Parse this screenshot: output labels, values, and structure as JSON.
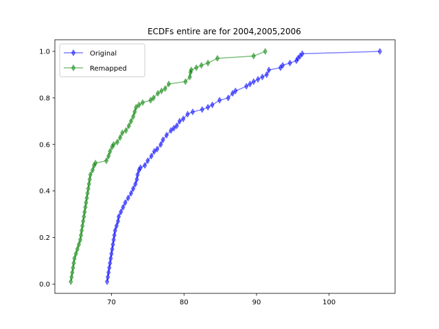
{
  "chart_data": {
    "type": "line",
    "title": "ECDFs entire are for 2004,2005,2006",
    "xlabel": "",
    "ylabel": "",
    "xlim": [
      62.2,
      109.1
    ],
    "ylim": [
      -0.04,
      1.05
    ],
    "xticks": [
      70,
      80,
      90,
      100
    ],
    "yticks": [
      0.0,
      0.2,
      0.4,
      0.6,
      0.8,
      1.0
    ],
    "xtick_labels": [
      "70",
      "80",
      "90",
      "100"
    ],
    "ytick_labels": [
      "0.0",
      "0.2",
      "0.4",
      "0.6",
      "0.8",
      "1.0"
    ],
    "grid": false,
    "legend_position": "upper-left",
    "marker": "thin-diamond",
    "series": [
      {
        "name": "Original",
        "color": "#0000ff",
        "points": [
          [
            69.4,
            0.01
          ],
          [
            69.5,
            0.03
          ],
          [
            69.6,
            0.05
          ],
          [
            69.7,
            0.07
          ],
          [
            69.8,
            0.09
          ],
          [
            69.9,
            0.11
          ],
          [
            70.0,
            0.13
          ],
          [
            70.1,
            0.15
          ],
          [
            70.2,
            0.17
          ],
          [
            70.3,
            0.19
          ],
          [
            70.4,
            0.21
          ],
          [
            70.5,
            0.23
          ],
          [
            70.7,
            0.25
          ],
          [
            70.9,
            0.27
          ],
          [
            71.0,
            0.29
          ],
          [
            71.3,
            0.31
          ],
          [
            71.6,
            0.33
          ],
          [
            71.9,
            0.35
          ],
          [
            72.3,
            0.37
          ],
          [
            72.7,
            0.39
          ],
          [
            73.0,
            0.41
          ],
          [
            73.3,
            0.43
          ],
          [
            73.5,
            0.45
          ],
          [
            73.6,
            0.47
          ],
          [
            73.8,
            0.49
          ],
          [
            74.0,
            0.5
          ],
          [
            74.6,
            0.51
          ],
          [
            75.0,
            0.53
          ],
          [
            75.5,
            0.55
          ],
          [
            75.9,
            0.57
          ],
          [
            76.3,
            0.58
          ],
          [
            76.8,
            0.6
          ],
          [
            77.1,
            0.62
          ],
          [
            77.6,
            0.64
          ],
          [
            78.2,
            0.66
          ],
          [
            78.6,
            0.67
          ],
          [
            79.0,
            0.68
          ],
          [
            79.4,
            0.7
          ],
          [
            79.9,
            0.71
          ],
          [
            80.5,
            0.73
          ],
          [
            81.2,
            0.74
          ],
          [
            82.5,
            0.75
          ],
          [
            83.3,
            0.76
          ],
          [
            83.9,
            0.77
          ],
          [
            84.9,
            0.79
          ],
          [
            86.1,
            0.8
          ],
          [
            86.7,
            0.82
          ],
          [
            87.1,
            0.83
          ],
          [
            88.6,
            0.85
          ],
          [
            89.1,
            0.86
          ],
          [
            89.6,
            0.87
          ],
          [
            90.2,
            0.88
          ],
          [
            90.8,
            0.89
          ],
          [
            91.4,
            0.9
          ],
          [
            91.7,
            0.92
          ],
          [
            93.3,
            0.93
          ],
          [
            93.6,
            0.94
          ],
          [
            94.6,
            0.95
          ],
          [
            95.5,
            0.96
          ],
          [
            95.7,
            0.97
          ],
          [
            96.0,
            0.98
          ],
          [
            96.3,
            0.99
          ],
          [
            107.0,
            1.0
          ]
        ]
      },
      {
        "name": "Remapped",
        "color": "#008000",
        "points": [
          [
            64.4,
            0.01
          ],
          [
            64.5,
            0.03
          ],
          [
            64.6,
            0.05
          ],
          [
            64.7,
            0.07
          ],
          [
            64.8,
            0.09
          ],
          [
            64.9,
            0.11
          ],
          [
            65.1,
            0.13
          ],
          [
            65.3,
            0.15
          ],
          [
            65.5,
            0.17
          ],
          [
            65.7,
            0.19
          ],
          [
            65.8,
            0.21
          ],
          [
            65.9,
            0.23
          ],
          [
            66.0,
            0.25
          ],
          [
            66.1,
            0.27
          ],
          [
            66.2,
            0.29
          ],
          [
            66.3,
            0.31
          ],
          [
            66.4,
            0.33
          ],
          [
            66.5,
            0.35
          ],
          [
            66.6,
            0.37
          ],
          [
            66.7,
            0.39
          ],
          [
            66.8,
            0.41
          ],
          [
            66.9,
            0.43
          ],
          [
            67.0,
            0.45
          ],
          [
            67.1,
            0.47
          ],
          [
            67.4,
            0.49
          ],
          [
            67.6,
            0.51
          ],
          [
            67.8,
            0.52
          ],
          [
            69.3,
            0.53
          ],
          [
            69.6,
            0.55
          ],
          [
            69.8,
            0.57
          ],
          [
            70.1,
            0.59
          ],
          [
            70.3,
            0.6
          ],
          [
            70.8,
            0.61
          ],
          [
            71.2,
            0.63
          ],
          [
            71.5,
            0.65
          ],
          [
            72.0,
            0.66
          ],
          [
            72.4,
            0.68
          ],
          [
            72.7,
            0.7
          ],
          [
            73.0,
            0.72
          ],
          [
            73.2,
            0.74
          ],
          [
            73.4,
            0.76
          ],
          [
            73.8,
            0.77
          ],
          [
            74.3,
            0.78
          ],
          [
            75.4,
            0.79
          ],
          [
            75.8,
            0.8
          ],
          [
            76.4,
            0.82
          ],
          [
            76.9,
            0.83
          ],
          [
            77.4,
            0.84
          ],
          [
            77.9,
            0.86
          ],
          [
            80.2,
            0.87
          ],
          [
            80.8,
            0.89
          ],
          [
            80.9,
            0.91
          ],
          [
            81.0,
            0.92
          ],
          [
            81.7,
            0.93
          ],
          [
            82.4,
            0.94
          ],
          [
            83.3,
            0.95
          ],
          [
            84.6,
            0.97
          ],
          [
            89.6,
            0.98
          ],
          [
            91.2,
            1.0
          ]
        ]
      }
    ]
  }
}
